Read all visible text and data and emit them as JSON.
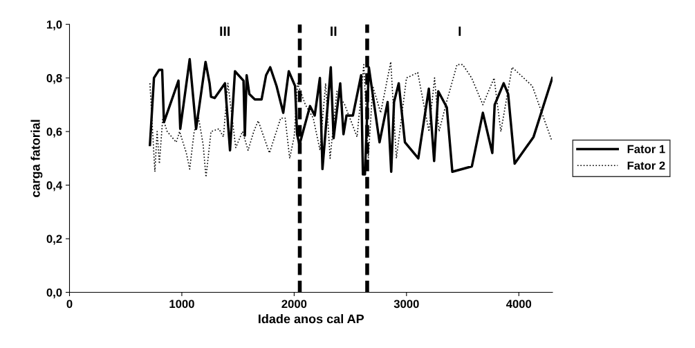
{
  "chart_data": {
    "type": "line",
    "xlabel": "Idade anos cal AP",
    "ylabel": "carga fatorial",
    "xlim": [
      0,
      4300
    ],
    "xticks": [
      0,
      1000,
      2000,
      3000,
      4000
    ],
    "ylim": [
      0,
      1.0
    ],
    "yticks": [
      {
        "value": 0,
        "label": "0,0"
      },
      {
        "value": 0.2,
        "label": "0,2"
      },
      {
        "value": 0.4,
        "label": "0,4"
      },
      {
        "value": 0.6,
        "label": "0,6"
      },
      {
        "value": 0.8,
        "label": "0,8"
      },
      {
        "value": 1.0,
        "label": "1,0"
      }
    ],
    "grid": false,
    "legend": "right",
    "marker": "none",
    "series": [
      {
        "name": "Fator 1",
        "color": "#000000",
        "line_style": "solid",
        "x": [
          716,
          752,
          797,
          825,
          841,
          970,
          986,
          1070,
          1127,
          1211,
          1247,
          1260,
          1292,
          1384,
          1429,
          1473,
          1549,
          1561,
          1577,
          1601,
          1650,
          1710,
          1750,
          1787,
          1843,
          1903,
          1952,
          2008,
          2026,
          2047,
          2141,
          2183,
          2229,
          2252,
          2326,
          2351,
          2410,
          2439,
          2466,
          2523,
          2596,
          2612,
          2630,
          2665,
          2760,
          2832,
          2864,
          2889,
          2931,
          2986,
          3105,
          3199,
          3246,
          3283,
          3359,
          3408,
          3582,
          3680,
          3764,
          3785,
          3865,
          3905,
          3963,
          4131,
          4298
        ],
        "values": [
          0.55,
          0.8,
          0.83,
          0.83,
          0.635,
          0.79,
          0.61,
          0.87,
          0.61,
          0.86,
          0.78,
          0.73,
          0.725,
          0.78,
          0.53,
          0.825,
          0.79,
          0.585,
          0.81,
          0.74,
          0.72,
          0.72,
          0.81,
          0.84,
          0.77,
          0.67,
          0.825,
          0.77,
          0.59,
          0.55,
          0.695,
          0.66,
          0.8,
          0.46,
          0.84,
          0.575,
          0.78,
          0.59,
          0.66,
          0.66,
          0.81,
          0.44,
          0.44,
          0.84,
          0.56,
          0.71,
          0.45,
          0.71,
          0.78,
          0.56,
          0.5,
          0.76,
          0.49,
          0.75,
          0.69,
          0.45,
          0.47,
          0.67,
          0.52,
          0.7,
          0.78,
          0.74,
          0.48,
          0.58,
          0.8
        ]
      },
      {
        "name": "Fator 2",
        "color": "#000000",
        "line_style": "dotted",
        "x": [
          716,
          760,
          780,
          800,
          830,
          870,
          950,
          980,
          1040,
          1070,
          1110,
          1150,
          1190,
          1215,
          1260,
          1330,
          1370,
          1410,
          1480,
          1540,
          1590,
          1640,
          1680,
          1780,
          1880,
          1920,
          1960,
          2000,
          2030,
          2100,
          2170,
          2230,
          2280,
          2320,
          2380,
          2450,
          2560,
          2620,
          2660,
          2700,
          2770,
          2860,
          2910,
          3000,
          3100,
          3200,
          3250,
          3290,
          3350,
          3450,
          3500,
          3580,
          3680,
          3780,
          3840,
          3940,
          4120,
          4290
        ],
        "values": [
          0.78,
          0.45,
          0.6,
          0.48,
          0.65,
          0.6,
          0.56,
          0.6,
          0.52,
          0.46,
          0.6,
          0.65,
          0.55,
          0.43,
          0.6,
          0.61,
          0.58,
          0.78,
          0.54,
          0.6,
          0.53,
          0.6,
          0.64,
          0.52,
          0.65,
          0.65,
          0.5,
          0.58,
          0.78,
          0.7,
          0.65,
          0.53,
          0.78,
          0.5,
          0.75,
          0.7,
          0.58,
          0.85,
          0.5,
          0.77,
          0.67,
          0.86,
          0.5,
          0.8,
          0.82,
          0.6,
          0.8,
          0.6,
          0.7,
          0.85,
          0.85,
          0.8,
          0.7,
          0.8,
          0.6,
          0.84,
          0.77,
          0.57
        ]
      }
    ],
    "ref_lines": [
      {
        "axis": "x",
        "value": 2050,
        "color": "#000000",
        "line_style": "dashed"
      },
      {
        "axis": "x",
        "value": 2650,
        "color": "#000000",
        "line_style": "dashed"
      }
    ],
    "annotations": [
      "III",
      "II",
      "I"
    ]
  }
}
